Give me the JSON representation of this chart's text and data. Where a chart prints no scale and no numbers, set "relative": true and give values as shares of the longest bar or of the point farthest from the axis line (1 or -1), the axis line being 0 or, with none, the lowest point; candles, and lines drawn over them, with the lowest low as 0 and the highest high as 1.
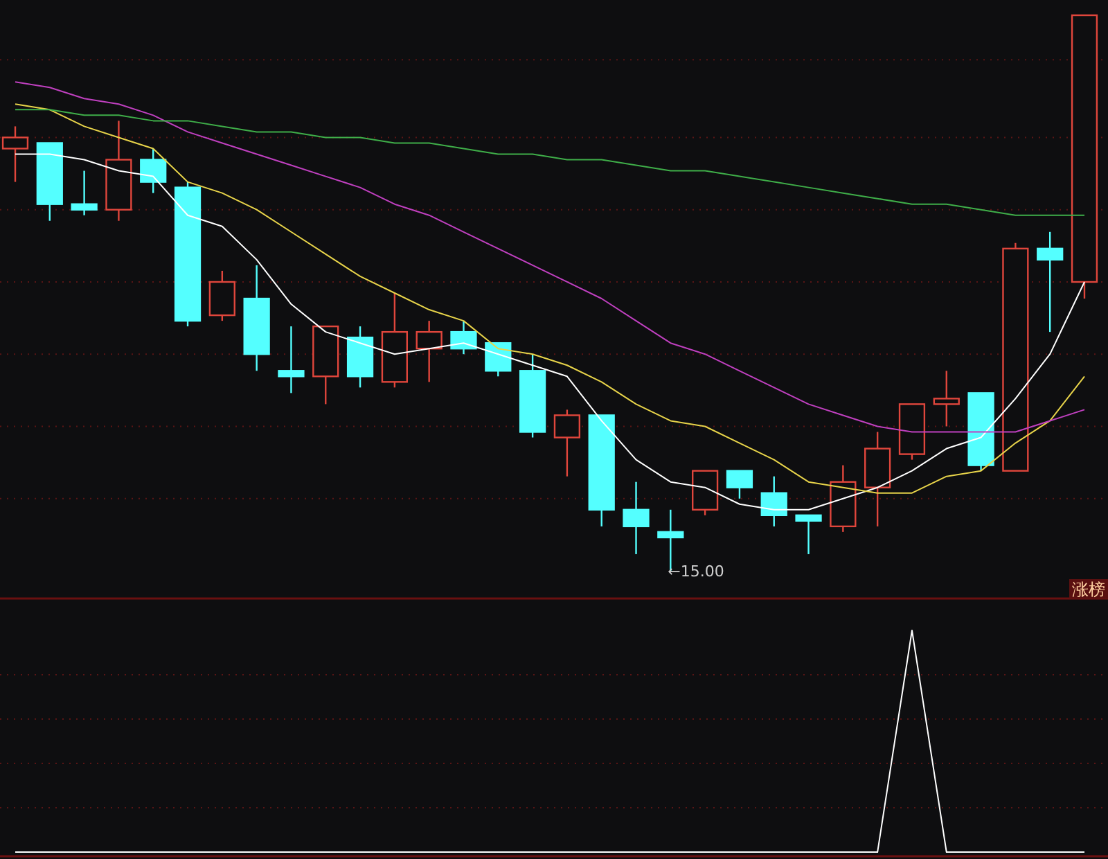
{
  "chart_data": [
    {
      "type": "candlestick",
      "relative": true,
      "ref_lines": [
        {
          "axis": "y",
          "value": 0.92,
          "color": "#5a1515",
          "line_style": "dotted"
        },
        {
          "axis": "y",
          "value": 0.78,
          "color": "#5a1515",
          "line_style": "dotted"
        },
        {
          "axis": "y",
          "value": 0.65,
          "color": "#5a1515",
          "line_style": "dotted"
        },
        {
          "axis": "y",
          "value": 0.52,
          "color": "#5a1515",
          "line_style": "dotted"
        },
        {
          "axis": "y",
          "value": 0.39,
          "color": "#5a1515",
          "line_style": "dotted"
        },
        {
          "axis": "y",
          "value": 0.26,
          "color": "#5a1515",
          "line_style": "dotted"
        },
        {
          "axis": "y",
          "value": 0.13,
          "color": "#5a1515",
          "line_style": "dotted"
        }
      ],
      "categories": [
        null,
        null,
        null,
        null,
        null,
        null,
        null,
        null,
        null,
        null,
        null,
        null,
        null,
        null,
        null,
        null,
        null,
        null,
        null,
        null,
        null,
        null,
        null,
        null,
        null,
        null,
        null,
        null,
        null,
        null,
        null,
        null
      ],
      "ohlc": [
        [
          0.76,
          0.8,
          0.7,
          0.78
        ],
        [
          0.77,
          0.77,
          0.63,
          0.66
        ],
        [
          0.66,
          0.72,
          0.64,
          0.65
        ],
        [
          0.65,
          0.81,
          0.63,
          0.74
        ],
        [
          0.74,
          0.76,
          0.68,
          0.7
        ],
        [
          0.69,
          0.7,
          0.44,
          0.45
        ],
        [
          0.46,
          0.54,
          0.45,
          0.52
        ],
        [
          0.49,
          0.55,
          0.36,
          0.39
        ],
        [
          0.36,
          0.44,
          0.32,
          0.35
        ],
        [
          0.35,
          0.44,
          0.3,
          0.44
        ],
        [
          0.42,
          0.44,
          0.33,
          0.35
        ],
        [
          0.34,
          0.5,
          0.33,
          0.43
        ],
        [
          0.4,
          0.45,
          0.34,
          0.43
        ],
        [
          0.43,
          0.45,
          0.39,
          0.4
        ],
        [
          0.41,
          0.41,
          0.35,
          0.36
        ],
        [
          0.36,
          0.39,
          0.24,
          0.25
        ],
        [
          0.24,
          0.29,
          0.17,
          0.28
        ],
        [
          0.28,
          0.28,
          0.08,
          0.11
        ],
        [
          0.11,
          0.16,
          0.03,
          0.08
        ],
        [
          0.07,
          0.11,
          0,
          0.06
        ],
        [
          0.11,
          0.18,
          0.1,
          0.18
        ],
        [
          0.18,
          0.18,
          0.13,
          0.15
        ],
        [
          0.14,
          0.17,
          0.08,
          0.1
        ],
        [
          0.1,
          0.1,
          0.03,
          0.09
        ],
        [
          0.08,
          0.19,
          0.07,
          0.16
        ],
        [
          0.15,
          0.25,
          0.08,
          0.22
        ],
        [
          0.21,
          0.3,
          0.2,
          0.3
        ],
        [
          0.3,
          0.36,
          0.26,
          0.31
        ],
        [
          0.32,
          0.32,
          0.18,
          0.19
        ],
        [
          0.18,
          0.59,
          0.18,
          0.58
        ],
        [
          0.58,
          0.61,
          0.43,
          0.56
        ],
        [
          0.52,
          1.0,
          0.49,
          1.0
        ]
      ],
      "colors": [
        "#e0463c",
        "#54ffff",
        "#54ffff",
        "#e0463c",
        "#54ffff",
        "#54ffff",
        "#e0463c",
        "#54ffff",
        "#54ffff",
        "#e0463c",
        "#54ffff",
        "#e0463c",
        "#e0463c",
        "#54ffff",
        "#54ffff",
        "#54ffff",
        "#e0463c",
        "#54ffff",
        "#54ffff",
        "#54ffff",
        "#e0463c",
        "#54ffff",
        "#54ffff",
        "#54ffff",
        "#e0463c",
        "#e0463c",
        "#e0463c",
        "#e0463c",
        "#54ffff",
        "#e0463c",
        "#54ffff",
        "#e0463c"
      ],
      "series": [
        {
          "type": "line",
          "color": "#ffffff",
          "values": [
            0.75,
            0.75,
            0.74,
            0.72,
            0.71,
            0.64,
            0.62,
            0.56,
            0.48,
            0.43,
            0.41,
            0.39,
            0.4,
            0.41,
            0.39,
            0.37,
            0.35,
            0.27,
            0.2,
            0.16,
            0.15,
            0.12,
            0.11,
            0.11,
            0.13,
            0.15,
            0.18,
            0.22,
            0.24,
            0.31,
            0.39,
            0.52
          ]
        },
        {
          "type": "line",
          "color": "#e8d44a",
          "values": [
            0.84,
            0.83,
            0.8,
            0.78,
            0.76,
            0.7,
            0.68,
            0.65,
            0.61,
            0.57,
            0.53,
            0.5,
            0.47,
            0.45,
            0.4,
            0.39,
            0.37,
            0.34,
            0.3,
            0.27,
            0.26,
            0.23,
            0.2,
            0.16,
            0.15,
            0.14,
            0.14,
            0.17,
            0.18,
            0.23,
            0.27,
            0.35
          ]
        },
        {
          "type": "line",
          "color": "#c040c0",
          "values": [
            0.88,
            0.87,
            0.85,
            0.84,
            0.82,
            0.79,
            0.77,
            0.75,
            0.73,
            0.71,
            0.69,
            0.66,
            0.64,
            0.61,
            0.58,
            0.55,
            0.52,
            0.49,
            0.45,
            0.41,
            0.39,
            0.36,
            0.33,
            0.3,
            0.28,
            0.26,
            0.25,
            0.25,
            0.25,
            0.25,
            0.27,
            0.29
          ]
        },
        {
          "type": "line",
          "color": "#3fae49",
          "values": [
            0.83,
            0.83,
            0.82,
            0.82,
            0.81,
            0.81,
            0.8,
            0.79,
            0.79,
            0.78,
            0.78,
            0.77,
            0.77,
            0.76,
            0.75,
            0.75,
            0.74,
            0.74,
            0.73,
            0.72,
            0.72,
            0.71,
            0.7,
            0.69,
            0.68,
            0.67,
            0.66,
            0.66,
            0.65,
            0.64,
            0.64,
            0.64
          ]
        }
      ],
      "annotations": [
        "←15.00"
      ]
    },
    {
      "type": "line",
      "relative": true,
      "ref_lines": [
        {
          "axis": "y",
          "value": 0.8,
          "color": "#5a1515",
          "line_style": "dotted"
        },
        {
          "axis": "y",
          "value": 0.6,
          "color": "#5a1515",
          "line_style": "dotted"
        },
        {
          "axis": "y",
          "value": 0.4,
          "color": "#5a1515",
          "line_style": "dotted"
        },
        {
          "axis": "y",
          "value": 0.2,
          "color": "#5a1515",
          "line_style": "dotted"
        }
      ],
      "categories": [
        null,
        null,
        null,
        null,
        null,
        null,
        null,
        null,
        null,
        null,
        null,
        null,
        null,
        null,
        null,
        null,
        null,
        null,
        null,
        null,
        null,
        null,
        null,
        null,
        null,
        null,
        null,
        null,
        null,
        null,
        null,
        null
      ],
      "series": [
        {
          "color": "#ffffff",
          "values": [
            0,
            0,
            0,
            0,
            0,
            0,
            0,
            0,
            0,
            0,
            0,
            0,
            0,
            0,
            0,
            0,
            0,
            0,
            0,
            0,
            0,
            0,
            0,
            0,
            0,
            0,
            1,
            0,
            0,
            0,
            0,
            0
          ]
        }
      ],
      "annotations": [
        "涨榜"
      ]
    }
  ]
}
